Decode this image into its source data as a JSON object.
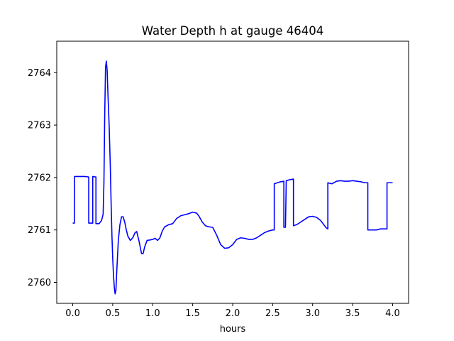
{
  "chart_data": {
    "type": "line",
    "title": "Water Depth h at gauge 46404",
    "xlabel": "hours",
    "ylabel": "",
    "xlim": [
      -0.2,
      4.2
    ],
    "ylim": [
      2759.6,
      2764.6
    ],
    "xticks": [
      0.0,
      0.5,
      1.0,
      1.5,
      2.0,
      2.5,
      3.0,
      3.5,
      4.0
    ],
    "xtick_labels": [
      "0.0",
      "0.5",
      "1.0",
      "1.5",
      "2.0",
      "2.5",
      "3.0",
      "3.5",
      "4.0"
    ],
    "yticks": [
      2760,
      2761,
      2762,
      2763,
      2764
    ],
    "ytick_labels": [
      "2760",
      "2761",
      "2762",
      "2763",
      "2764"
    ],
    "grid": false,
    "legend": "none",
    "series": [
      {
        "color": "#0000ff",
        "x": [
          0.0,
          0.02,
          0.022,
          0.05,
          0.1,
          0.15,
          0.2,
          0.2,
          0.25,
          0.25,
          0.29,
          0.29,
          0.33,
          0.36,
          0.38,
          0.39,
          0.4,
          0.41,
          0.42,
          0.43,
          0.44,
          0.455,
          0.47,
          0.48,
          0.49,
          0.5,
          0.51,
          0.52,
          0.53,
          0.54,
          0.55,
          0.57,
          0.59,
          0.61,
          0.63,
          0.65,
          0.67,
          0.69,
          0.72,
          0.75,
          0.78,
          0.8,
          0.83,
          0.86,
          0.88,
          0.9,
          0.93,
          0.97,
          1.0,
          1.03,
          1.06,
          1.09,
          1.12,
          1.15,
          1.2,
          1.25,
          1.3,
          1.35,
          1.4,
          1.45,
          1.5,
          1.55,
          1.58,
          1.62,
          1.66,
          1.7,
          1.75,
          1.8,
          1.85,
          1.9,
          1.95,
          2.0,
          2.05,
          2.1,
          2.15,
          2.2,
          2.25,
          2.3,
          2.35,
          2.4,
          2.45,
          2.5,
          2.52,
          2.52,
          2.56,
          2.6,
          2.64,
          2.64,
          2.66,
          2.67,
          2.67,
          2.72,
          2.76,
          2.76,
          2.8,
          2.85,
          2.9,
          2.95,
          3.0,
          3.05,
          3.1,
          3.14,
          3.17,
          3.19,
          3.19,
          3.24,
          3.3,
          3.35,
          3.4,
          3.45,
          3.5,
          3.55,
          3.6,
          3.65,
          3.68,
          3.69,
          3.69,
          3.75,
          3.8,
          3.85,
          3.9,
          3.93,
          3.93,
          3.97,
          4.0
        ],
        "y": [
          2761.13,
          2761.13,
          2762.02,
          2762.02,
          2762.02,
          2762.02,
          2762.01,
          2761.13,
          2761.13,
          2762.02,
          2762.01,
          2761.12,
          2761.12,
          2761.18,
          2761.3,
          2761.9,
          2763.2,
          2764.1,
          2764.22,
          2764.05,
          2763.6,
          2763.0,
          2762.2,
          2761.5,
          2760.9,
          2760.45,
          2760.12,
          2759.9,
          2759.78,
          2759.85,
          2760.2,
          2760.8,
          2761.1,
          2761.25,
          2761.25,
          2761.15,
          2761.0,
          2760.88,
          2760.8,
          2760.85,
          2760.95,
          2760.97,
          2760.78,
          2760.55,
          2760.55,
          2760.68,
          2760.8,
          2760.81,
          2760.82,
          2760.84,
          2760.8,
          2760.85,
          2760.98,
          2761.06,
          2761.1,
          2761.12,
          2761.22,
          2761.27,
          2761.29,
          2761.31,
          2761.34,
          2761.32,
          2761.26,
          2761.15,
          2761.08,
          2761.06,
          2761.05,
          2760.9,
          2760.72,
          2760.65,
          2760.66,
          2760.72,
          2760.82,
          2760.85,
          2760.84,
          2760.82,
          2760.82,
          2760.85,
          2760.9,
          2760.95,
          2760.98,
          2761.0,
          2761.0,
          2761.88,
          2761.9,
          2761.92,
          2761.93,
          2761.05,
          2761.05,
          2761.93,
          2761.94,
          2761.96,
          2761.97,
          2761.08,
          2761.1,
          2761.15,
          2761.2,
          2761.25,
          2761.26,
          2761.24,
          2761.18,
          2761.1,
          2761.04,
          2761.02,
          2761.9,
          2761.88,
          2761.93,
          2761.94,
          2761.93,
          2761.93,
          2761.94,
          2761.93,
          2761.92,
          2761.9,
          2761.9,
          2761.9,
          2761.0,
          2761.0,
          2761.0,
          2761.02,
          2761.02,
          2761.02,
          2761.9,
          2761.9,
          2761.9
        ]
      }
    ]
  }
}
